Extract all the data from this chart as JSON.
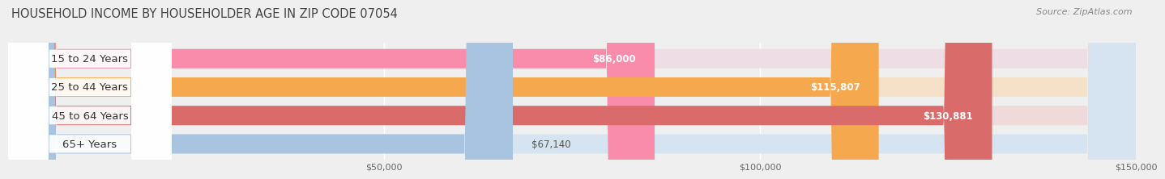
{
  "title": "HOUSEHOLD INCOME BY HOUSEHOLDER AGE IN ZIP CODE 07054",
  "source": "Source: ZipAtlas.com",
  "categories": [
    "15 to 24 Years",
    "25 to 44 Years",
    "45 to 64 Years",
    "65+ Years"
  ],
  "values": [
    86000,
    115807,
    130881,
    67140
  ],
  "value_labels": [
    "$86,000",
    "$115,807",
    "$130,881",
    "$67,140"
  ],
  "bar_colors": [
    "#f98bab",
    "#f5a84e",
    "#d96b6b",
    "#a8c4e0"
  ],
  "bar_bg_colors": [
    "#eedde4",
    "#f5e0c8",
    "#eedada",
    "#d5e4f0"
  ],
  "xmin": 0,
  "xmax": 150000,
  "xticks": [
    50000,
    100000,
    150000
  ],
  "xtick_labels": [
    "$50,000",
    "$100,000",
    "$150,000"
  ],
  "background_color": "#efefef",
  "title_fontsize": 10.5,
  "label_fontsize": 9.5,
  "value_fontsize": 8.5,
  "source_fontsize": 8
}
